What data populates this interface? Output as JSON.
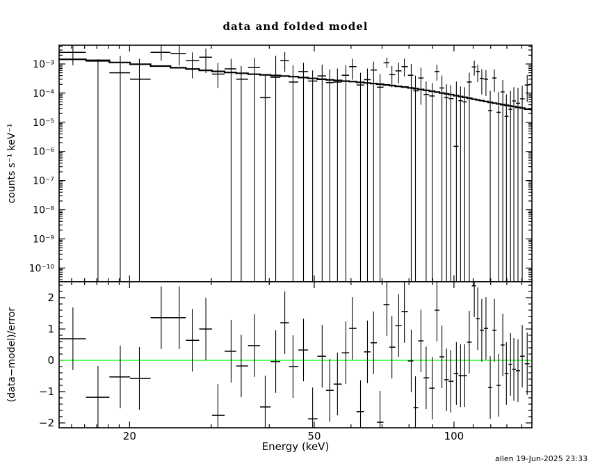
{
  "window": {
    "kind": "xspec-pgplot-spectrum-plot"
  },
  "title": "data and folded model",
  "footer": "allen 19-Jun-2025 23:33",
  "chart_data": {
    "type": "scatter",
    "subtype": "two-panel spectrum with error bars and folded model (XSPEC style)",
    "title": "data and folded model",
    "xlabel": "Energy (keV)",
    "grid": false,
    "legend": null,
    "x_axis": {
      "scale": "log",
      "range_kev": [
        14.1,
        147.2
      ],
      "major_ticks": [
        20,
        50,
        100
      ],
      "major_tick_labels": [
        "20",
        "50",
        "100"
      ],
      "minor_ticks": [
        15,
        16,
        17,
        18,
        19,
        30,
        40,
        60,
        70,
        80,
        90,
        110,
        120,
        130,
        140
      ]
    },
    "top_panel": {
      "ylabel": "counts s⁻¹ keV⁻¹",
      "scale": "log",
      "range": [
        3.4e-11,
        0.0044
      ],
      "major_tick_exponents": [
        -3,
        -4,
        -5,
        -6,
        -7,
        -8,
        -9,
        -10
      ],
      "major_tick_labels": [
        "10⁻³",
        "10⁻⁴",
        "10⁻⁵",
        "10⁻⁶",
        "10⁻⁷",
        "10⁻⁸",
        "10⁻⁹",
        "10⁻¹⁰"
      ],
      "model": {
        "name": "folded model",
        "color": "#000000",
        "e_kev": [
          14.1,
          17,
          20,
          24,
          30,
          36,
          44,
          52,
          62,
          70,
          80,
          90,
          100,
          110,
          120,
          130,
          140,
          147.2
        ],
        "value": [
          0.0015,
          0.00135,
          0.00105,
          0.00082,
          0.00058,
          0.00046,
          0.00038,
          0.0003,
          0.00024,
          0.0002,
          0.000155,
          0.000115,
          8.5e-05,
          6.3e-05,
          4.8e-05,
          3.8e-05,
          3.1e-05,
          2.6e-05
        ]
      },
      "spectrum": {
        "name": "data",
        "color": "#000000",
        "note": "err_lo value 0 means lower error extends below zero and is drawn to the panel floor",
        "e_kev": [
          15.1,
          17.1,
          19.1,
          21.0,
          23.4,
          25.6,
          27.3,
          29.2,
          31.0,
          33.1,
          34.8,
          37.2,
          39.2,
          41.3,
          43.2,
          45.0,
          47.4,
          49.6,
          52.0,
          54.0,
          56.1,
          58.5,
          60.4,
          62.9,
          65.1,
          67.1,
          69.3,
          71.7,
          73.5,
          76.0,
          78.2,
          80.9,
          82.6,
          84.9,
          87.1,
          89.8,
          91.9,
          94.2,
          96.4,
          98.4,
          101.2,
          103.3,
          105.5,
          107.9,
          110.6,
          112.5,
          114.8,
          117.2,
          119.7,
          122.2,
          124.8,
          127.4,
          129.7,
          132.4,
          134.6,
          137.4,
          140.3,
          143.8
        ],
        "value": [
          0.0025,
          0.00125,
          0.0005,
          0.0003,
          0.0025,
          0.0023,
          0.0013,
          0.0017,
          0.00045,
          0.00068,
          0.0003,
          0.00076,
          7e-05,
          0.00035,
          0.0013,
          0.00024,
          0.00055,
          0.00026,
          0.00039,
          0.00023,
          0.00024,
          0.00041,
          0.00081,
          0.00019,
          0.00029,
          0.00062,
          0.00016,
          0.0011,
          0.00043,
          0.00058,
          0.00081,
          0.00041,
          0.00012,
          0.00033,
          9e-05,
          8e-05,
          0.00055,
          0.00015,
          7e-05,
          6.5e-05,
          1.5e-06,
          5.5e-05,
          5e-05,
          0.00024,
          0.00079,
          0.00055,
          0.00032,
          0.0003,
          2.5e-05,
          0.00033,
          2.2e-05,
          0.00011,
          1.6e-05,
          2.8e-05,
          5.4e-05,
          4.5e-05,
          6.4e-05,
          0.00019
        ],
        "err_hi": [
          0.0045,
          0.00145,
          0.0019,
          0.0015,
          0.0044,
          0.0043,
          0.0025,
          0.0034,
          0.0011,
          0.0015,
          0.00085,
          0.00165,
          0.0004,
          0.0019,
          0.00255,
          0.0009,
          0.0011,
          0.0006,
          0.00095,
          0.00065,
          0.0007,
          0.0009,
          0.0015,
          0.0005,
          0.0007,
          0.0012,
          0.00045,
          0.00165,
          0.00085,
          0.0011,
          0.0015,
          0.001,
          0.0004,
          0.00075,
          0.00025,
          0.00022,
          0.00095,
          0.0004,
          0.0002,
          0.00019,
          0.00025,
          0.00017,
          0.00016,
          0.0005,
          0.0013,
          0.00095,
          0.00065,
          0.00062,
          0.00012,
          0.00065,
          0.00011,
          0.00028,
          9e-05,
          0.00012,
          0.00016,
          0.00015,
          0.00018,
          0.00042
        ],
        "err_lo": [
          0.0009,
          0,
          0,
          0,
          0.0013,
          0.0009,
          0.00032,
          0.00049,
          0.00015,
          0,
          0,
          0,
          0,
          0,
          0.00054,
          0,
          0,
          0,
          0,
          0,
          0,
          0,
          0.00029,
          0,
          0,
          0,
          0,
          0.00074,
          0.00016,
          0.00022,
          0.00037,
          0,
          0,
          4e-05,
          0,
          0,
          0.00027,
          0,
          0,
          0,
          0,
          0,
          0,
          0,
          0.0004,
          0.00024,
          9e-05,
          8e-05,
          0,
          0.00011,
          0,
          0,
          0,
          0,
          0,
          0,
          0,
          5e-05
        ]
      }
    },
    "bottom_panel": {
      "ylabel": "(data−model)/error",
      "scale": "linear",
      "range": [
        -2.156,
        2.511
      ],
      "major_ticks": [
        -2,
        -1,
        0,
        1,
        2
      ],
      "major_tick_labels": [
        "−2",
        "−1",
        "0",
        "1",
        "2"
      ],
      "minor_tick_step": 0.2,
      "zero_line_color": "#00ff00",
      "residuals": {
        "name": "(data-model)/error",
        "error_half_length": 1.0,
        "value": [
          0.69,
          -1.18,
          -0.53,
          -0.58,
          1.36,
          1.36,
          0.64,
          1.0,
          -1.76,
          0.29,
          -0.18,
          0.47,
          -1.49,
          -0.04,
          1.2,
          -0.2,
          0.33,
          -1.87,
          0.13,
          -0.96,
          -0.76,
          0.24,
          1.02,
          -1.64,
          0.27,
          0.56,
          -1.98,
          1.78,
          0.42,
          1.11,
          1.56,
          -0.02,
          -1.51,
          0.62,
          -0.56,
          -0.89,
          1.6,
          0.11,
          -0.62,
          -0.67,
          -0.42,
          -0.49,
          -0.49,
          0.58,
          2.38,
          1.33,
          0.96,
          1.02,
          -0.87,
          0.96,
          -0.8,
          0.49,
          -0.42,
          -0.13,
          -0.29,
          -0.33,
          0.13,
          -0.11
        ]
      }
    }
  }
}
